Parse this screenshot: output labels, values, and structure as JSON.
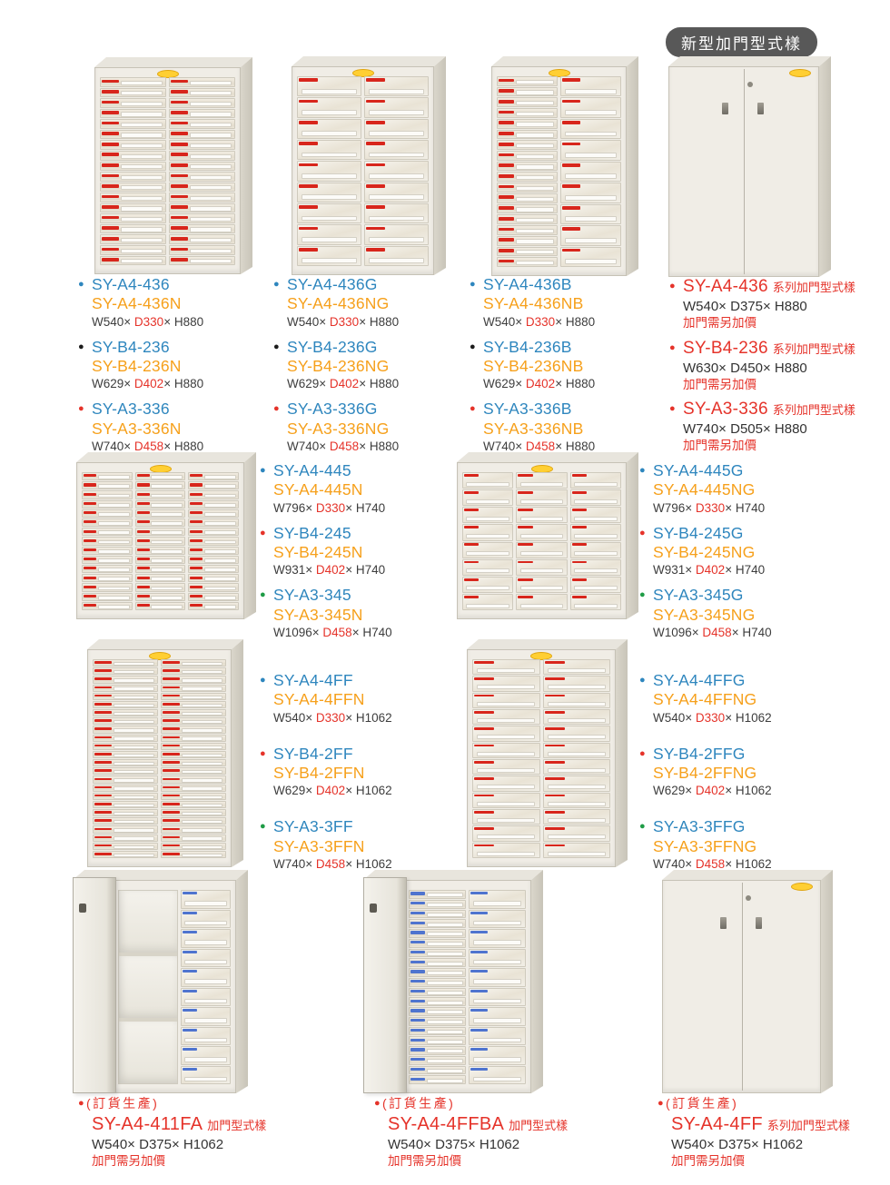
{
  "badge": {
    "label": "新型加門型式樣"
  },
  "palette": {
    "code_blue": "#2e86be",
    "variant_orange": "#f6a01b",
    "accent_red": "#e5332a",
    "bullet_green": "#1f9c46",
    "drawer_chip_red": "#d8261c",
    "drawer_chip_blue": "#4f74cf"
  },
  "groups": {
    "g1": [
      {
        "bullet": "blue",
        "code": "SY-A4-436",
        "code2": "SY-A4-436N",
        "dim_w": "W540× ",
        "dim_d": "D330",
        "dim_rest": "× H880"
      },
      {
        "bullet": "black",
        "code": "SY-B4-236",
        "code2": "SY-B4-236N",
        "dim_w": "W629× ",
        "dim_d": "D402",
        "dim_rest": "× H880"
      },
      {
        "bullet": "red",
        "code": "SY-A3-336",
        "code2": "SY-A3-336N",
        "dim_w": "W740× ",
        "dim_d": "D458",
        "dim_rest": "× H880"
      }
    ],
    "g2": [
      {
        "bullet": "blue",
        "code": "SY-A4-436G",
        "code2": "SY-A4-436NG",
        "dim_w": "W540× ",
        "dim_d": "D330",
        "dim_rest": "× H880"
      },
      {
        "bullet": "black",
        "code": "SY-B4-236G",
        "code2": "SY-B4-236NG",
        "dim_w": "W629× ",
        "dim_d": "D402",
        "dim_rest": "× H880"
      },
      {
        "bullet": "red",
        "code": "SY-A3-336G",
        "code2": "SY-A3-336NG",
        "dim_w": "W740× ",
        "dim_d": "D458",
        "dim_rest": "× H880"
      }
    ],
    "g3": [
      {
        "bullet": "blue",
        "code": "SY-A4-436B",
        "code2": "SY-A4-436NB",
        "dim_w": "W540× ",
        "dim_d": "D330",
        "dim_rest": "× H880"
      },
      {
        "bullet": "black",
        "code": "SY-B4-236B",
        "code2": "SY-B4-236NB",
        "dim_w": "W629× ",
        "dim_d": "D402",
        "dim_rest": "× H880"
      },
      {
        "bullet": "red",
        "code": "SY-A3-336B",
        "code2": "SY-A3-336NB",
        "dim_w": "W740× ",
        "dim_d": "D458",
        "dim_rest": "× H880"
      }
    ],
    "g4": [
      {
        "bullet": "red",
        "code": "SY-A4-436",
        "tag": "系列加門型式樣",
        "dims": "W540× D375× H880",
        "note": "加門需另加價"
      },
      {
        "bullet": "red",
        "code": "SY-B4-236",
        "tag": "系列加門型式樣",
        "dims": "W630× D450× H880",
        "note": "加門需另加價"
      },
      {
        "bullet": "red",
        "code": "SY-A3-336",
        "tag": "系列加門型式樣",
        "dims": "W740× D505× H880",
        "note": "加門需另加價"
      }
    ],
    "g5": [
      {
        "bullet": "blue",
        "code": "SY-A4-445",
        "code2": "SY-A4-445N",
        "dim_w": "W796× ",
        "dim_d": "D330",
        "dim_rest": "× H740"
      },
      {
        "bullet": "red",
        "code": "SY-B4-245",
        "code2": "SY-B4-245N",
        "dim_w": "W931× ",
        "dim_d": "D402",
        "dim_rest": "× H740"
      },
      {
        "bullet": "green",
        "code": "SY-A3-345",
        "code2": "SY-A3-345N",
        "dim_w": "W1096× ",
        "dim_d": "D458",
        "dim_rest": "× H740"
      }
    ],
    "g6": [
      {
        "bullet": "blue",
        "code": "SY-A4-445G",
        "code2": "SY-A4-445NG",
        "dim_w": "W796× ",
        "dim_d": "D330",
        "dim_rest": "× H740"
      },
      {
        "bullet": "red",
        "code": "SY-B4-245G",
        "code2": "SY-B4-245NG",
        "dim_w": "W931× ",
        "dim_d": "D402",
        "dim_rest": "× H740"
      },
      {
        "bullet": "green",
        "code": "SY-A3-345G",
        "code2": "SY-A3-345NG",
        "dim_w": "W1096× ",
        "dim_d": "D458",
        "dim_rest": "× H740"
      }
    ],
    "g7": [
      {
        "bullet": "blue",
        "code": "SY-A4-4FF",
        "code2": "SY-A4-4FFN",
        "dim_w": "W540× ",
        "dim_d": "D330",
        "dim_rest": "× H1062"
      },
      {
        "bullet": "red",
        "code": "SY-B4-2FF",
        "code2": "SY-B4-2FFN",
        "dim_w": "W629× ",
        "dim_d": "D402",
        "dim_rest": "× H1062"
      },
      {
        "bullet": "green",
        "code": "SY-A3-3FF",
        "code2": "SY-A3-3FFN",
        "dim_w": "W740× ",
        "dim_d": "D458",
        "dim_rest": "× H1062"
      }
    ],
    "g8": [
      {
        "bullet": "blue",
        "code": "SY-A4-4FFG",
        "code2": "SY-A4-4FFNG",
        "dim_w": "W540× ",
        "dim_d": "D330",
        "dim_rest": "× H1062"
      },
      {
        "bullet": "red",
        "code": "SY-B4-2FFG",
        "code2": "SY-B4-2FFNG",
        "dim_w": "W629× ",
        "dim_d": "D402",
        "dim_rest": "× H1062"
      },
      {
        "bullet": "green",
        "code": "SY-A3-3FFG",
        "code2": "SY-A3-3FFNG",
        "dim_w": "W740× ",
        "dim_d": "D458",
        "dim_rest": "× H1062"
      }
    ],
    "g9": [
      {
        "bullet": "red",
        "preorder": "(訂貨生產)",
        "code": "SY-A4-411FA",
        "tag": "加門型式樣",
        "dims": "W540× D375× H1062",
        "note": "加門需另加價"
      }
    ],
    "g10": [
      {
        "bullet": "red",
        "preorder": "(訂貨生產)",
        "code": "SY-A4-4FFBA",
        "tag": "加門型式樣",
        "dims": "W540× D375× H1062",
        "note": "加門需另加價"
      }
    ],
    "g11": [
      {
        "bullet": "red",
        "preorder": "(訂貨生產)",
        "code": "SY-A4-4FF",
        "tag": "系列加門型式樣",
        "dims": "W540× D375× H1062",
        "note": "加門需另加價"
      }
    ]
  },
  "cabinets": {
    "r1c1": {
      "kind": "drawers",
      "cols": [
        {
          "n": 18
        },
        {
          "n": 18
        }
      ]
    },
    "r1c2": {
      "kind": "drawers",
      "cols": [
        {
          "n": 9,
          "deep": true
        },
        {
          "n": 9,
          "deep": true
        }
      ]
    },
    "r1c3": {
      "kind": "drawers",
      "cols": [
        {
          "n": 18
        },
        {
          "n": 9,
          "deep": true
        }
      ]
    },
    "r1c4": {
      "kind": "doors"
    },
    "r2l": {
      "kind": "drawers",
      "cols": [
        {
          "n": 15
        },
        {
          "n": 15
        },
        {
          "n": 15
        }
      ]
    },
    "r2r": {
      "kind": "drawers",
      "cols": [
        {
          "n": 8,
          "deep": true
        },
        {
          "n": 8,
          "deep": true
        },
        {
          "n": 8,
          "deep": true
        }
      ]
    },
    "r3l": {
      "kind": "drawers",
      "cols": [
        {
          "n": 24
        },
        {
          "n": 24
        }
      ]
    },
    "r3r": {
      "kind": "drawers",
      "cols": [
        {
          "n": 12,
          "deep": true
        },
        {
          "n": 12,
          "deep": true
        }
      ]
    },
    "r4l": {
      "kind": "open",
      "cols": [
        {
          "shelves": 3
        },
        {
          "n": 10,
          "deep": true,
          "chip": "blue"
        }
      ]
    },
    "r4m": {
      "kind": "open",
      "cols": [
        {
          "n": 20,
          "chip": "blue"
        },
        {
          "n": 10,
          "deep": true,
          "chip": "blue"
        }
      ]
    },
    "r4r": {
      "kind": "doors"
    }
  }
}
